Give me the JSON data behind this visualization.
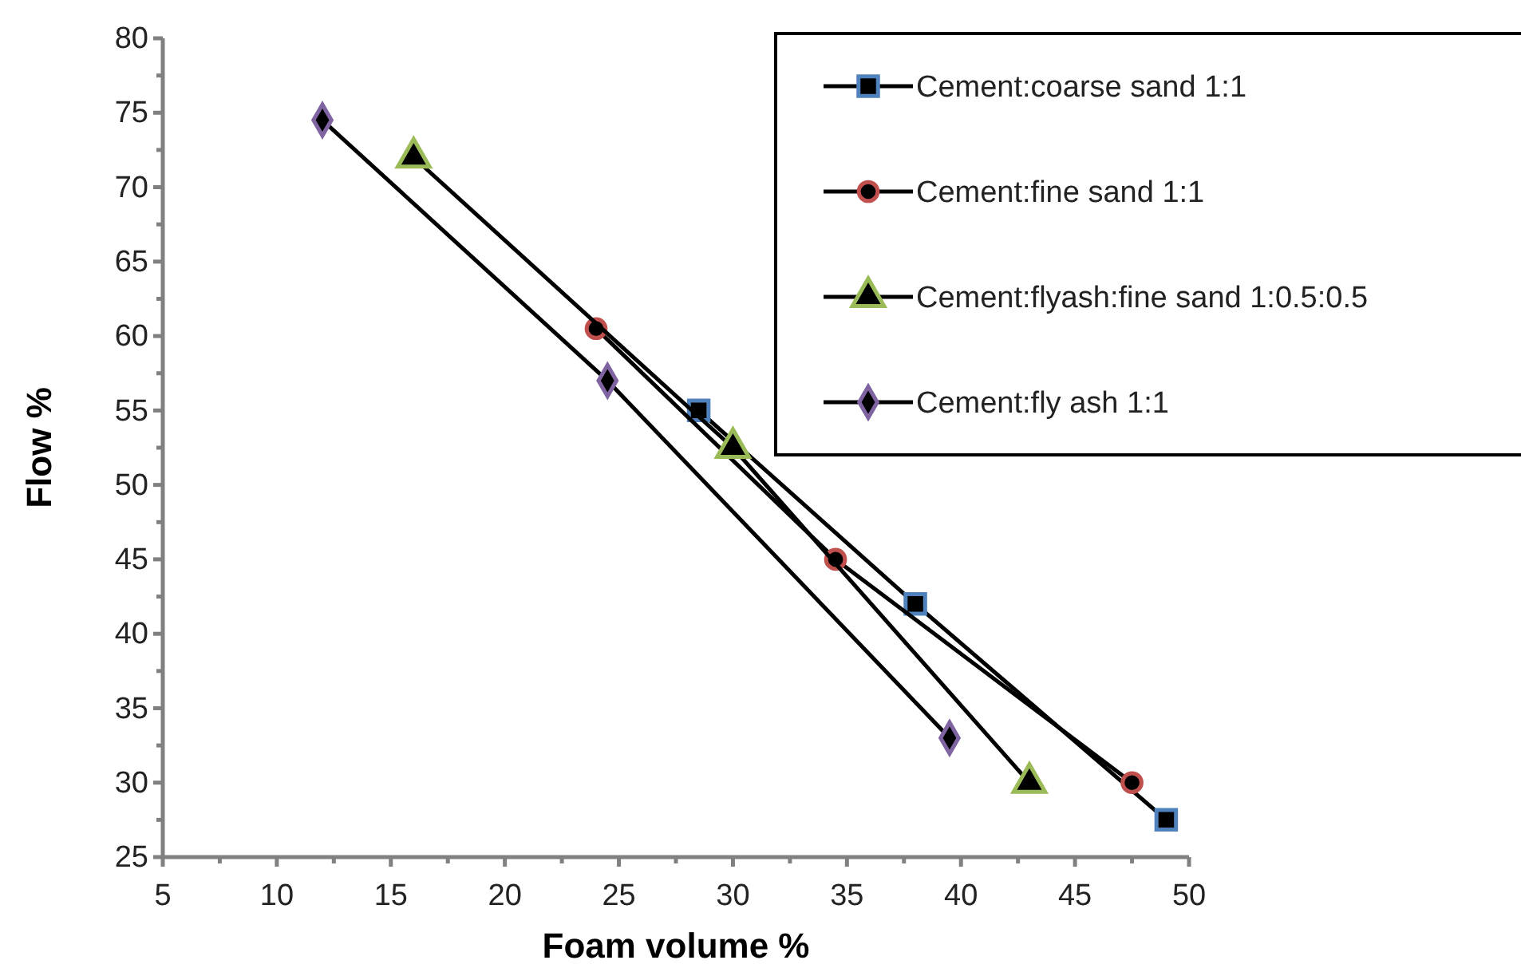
{
  "chart_data": {
    "type": "line",
    "xlabel": "Foam volume %",
    "ylabel": "Flow %",
    "xlim": [
      5,
      50
    ],
    "xticks": [
      5,
      10,
      15,
      20,
      25,
      30,
      35,
      40,
      45,
      50
    ],
    "ylim": [
      25,
      80
    ],
    "yticks": [
      25,
      30,
      35,
      40,
      45,
      50,
      55,
      60,
      65,
      70,
      75,
      80
    ],
    "grid": false,
    "legend": "top right",
    "line_style": "solid",
    "series": [
      {
        "name": "Cement:coarse sand 1:1",
        "color": "#4f81bd",
        "marker": "square",
        "x": [
          28.5,
          38,
          49
        ],
        "values": [
          55,
          42,
          27.5
        ]
      },
      {
        "name": "Cement:fine sand 1:1",
        "color": "#c0504d",
        "marker": "circle",
        "x": [
          24,
          34.5,
          47.5
        ],
        "values": [
          60.5,
          45,
          30
        ]
      },
      {
        "name": "Cement:flyash:fine sand 1:0.5:0.5",
        "color": "#9bbb59",
        "marker": "triangle",
        "x": [
          16,
          30,
          43
        ],
        "values": [
          72,
          52.5,
          30
        ]
      },
      {
        "name": "Cement:fly ash 1:1",
        "color": "#8064a2",
        "marker": "diamond",
        "x": [
          12,
          24.5,
          39.5
        ],
        "values": [
          74.5,
          57,
          33
        ]
      }
    ]
  }
}
